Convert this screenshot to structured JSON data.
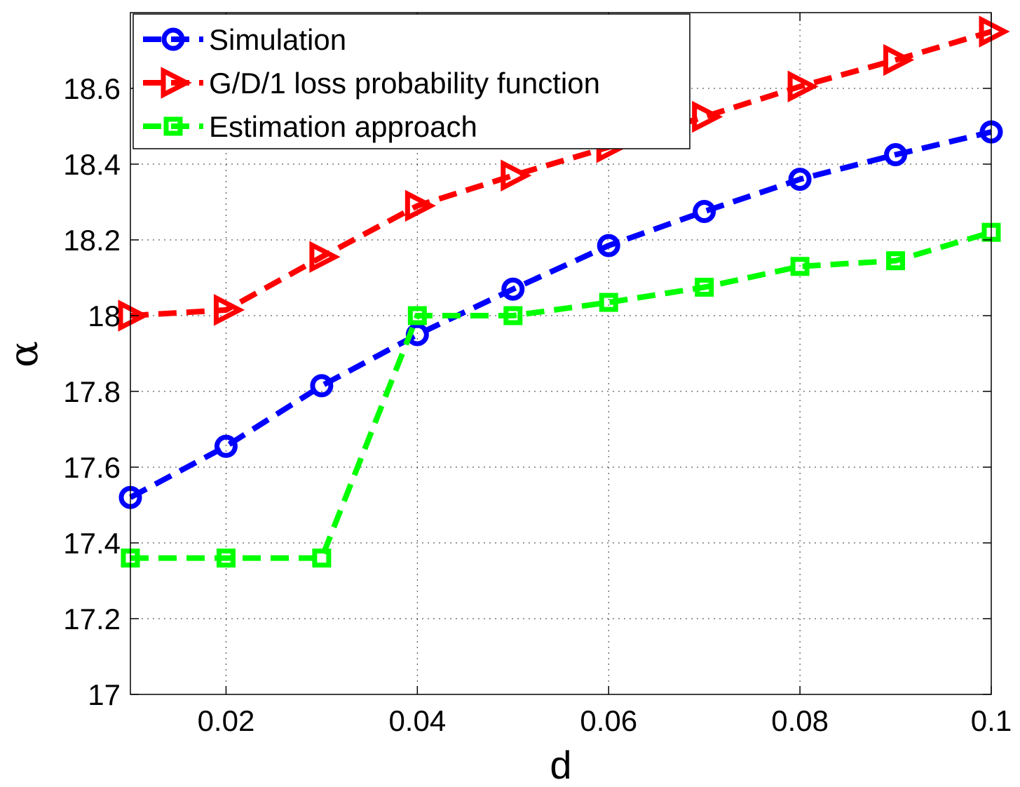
{
  "chart_data": {
    "type": "line",
    "title": "",
    "xlabel": "d",
    "ylabel": "α",
    "xlim": [
      0.01,
      0.1
    ],
    "ylim": [
      17,
      18.8
    ],
    "xticks": [
      0.02,
      0.04,
      0.06,
      0.08,
      0.1
    ],
    "xtick_labels": [
      "0.02",
      "0.04",
      "0.06",
      "0.08",
      "0.1"
    ],
    "yticks": [
      17,
      17.2,
      17.4,
      17.6,
      17.8,
      18,
      18.2,
      18.4,
      18.6
    ],
    "ytick_labels": [
      "17",
      "17.2",
      "17.4",
      "17.6",
      "17.8",
      "18",
      "18.2",
      "18.4",
      "18.6"
    ],
    "grid": true,
    "legend_position": "top-left",
    "x": [
      0.01,
      0.02,
      0.03,
      0.04,
      0.05,
      0.06,
      0.07,
      0.08,
      0.09,
      0.1
    ],
    "series": [
      {
        "name": "Simulation",
        "color": "#0000ff",
        "marker": "circle",
        "values": [
          17.52,
          17.655,
          17.815,
          17.95,
          18.07,
          18.185,
          18.275,
          18.36,
          18.425,
          18.485
        ]
      },
      {
        "name": "G/D/1 loss probability function",
        "color": "#ff0000",
        "marker": "triangle-right",
        "values": [
          18.0,
          18.015,
          18.155,
          18.29,
          18.37,
          18.445,
          18.525,
          18.605,
          18.675,
          18.75
        ]
      },
      {
        "name": "Estimation approach",
        "color": "#00ff00",
        "marker": "square",
        "values": [
          17.36,
          17.36,
          17.36,
          18.0,
          18.0,
          18.035,
          18.075,
          18.13,
          18.145,
          18.22
        ]
      }
    ]
  }
}
